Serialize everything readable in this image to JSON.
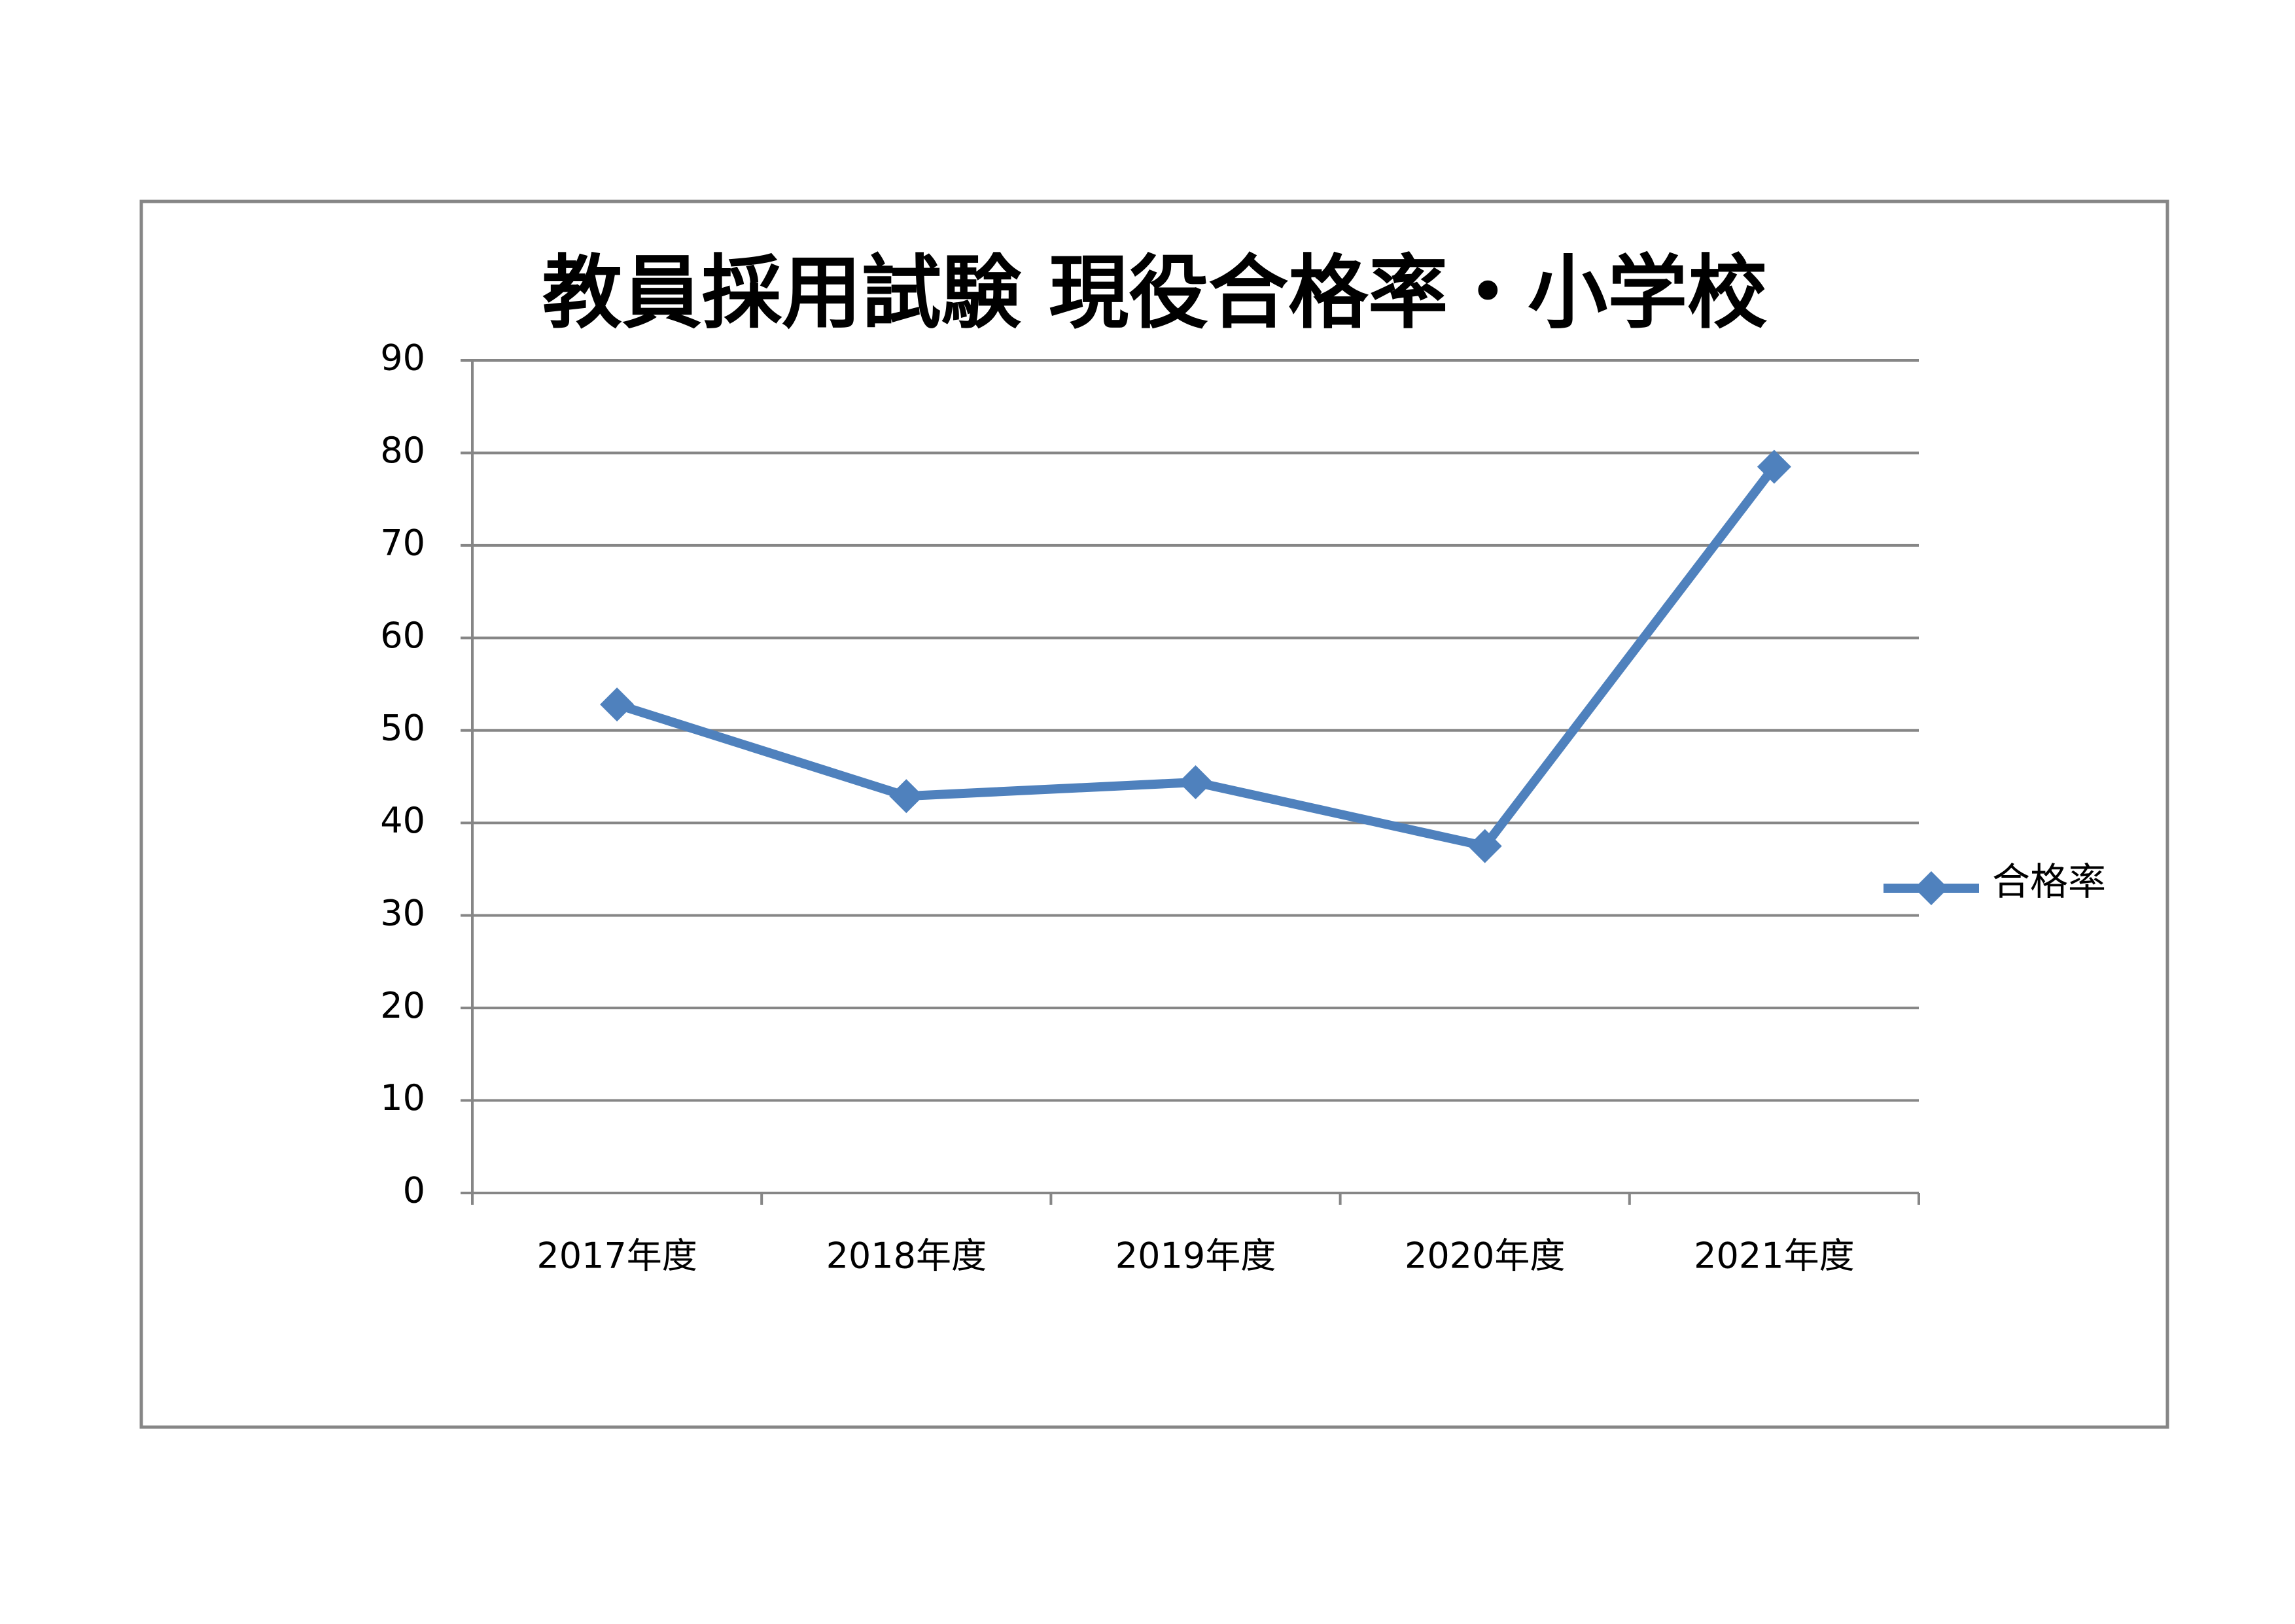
{
  "chart_data": {
    "type": "line",
    "title": "教員採用試験 現役合格率・小学校",
    "categories": [
      "2017年度",
      "2018年度",
      "2019年度",
      "2020年度",
      "2021年度"
    ],
    "series": [
      {
        "name": "合格率",
        "color": "#4f81bd",
        "values": [
          52.8,
          42.9,
          44.4,
          37.5,
          78.5
        ]
      }
    ],
    "ylim": [
      0,
      90
    ],
    "yticks": [
      0,
      10,
      20,
      30,
      40,
      50,
      60,
      70,
      80,
      90
    ],
    "grid": true,
    "legend": "right"
  }
}
